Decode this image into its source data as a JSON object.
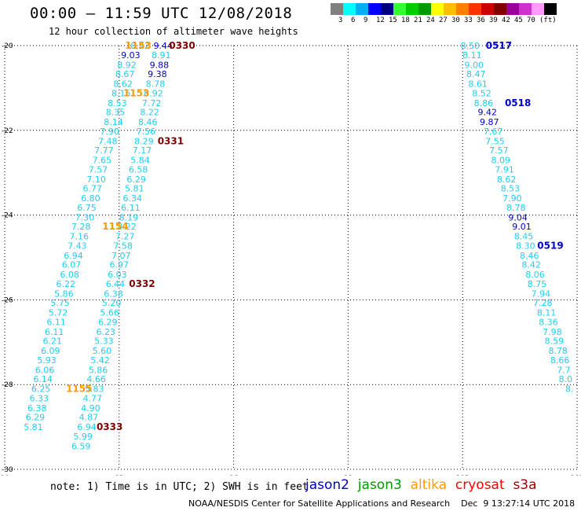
{
  "header": {
    "title": "00:00 – 11:59 UTC 12/08/2018",
    "subtitle": "12 hour collection of altimeter wave heights"
  },
  "legend": {
    "colors": [
      "#808080",
      "#00ffff",
      "#00b0f0",
      "#0000ff",
      "#00007f",
      "#33ff33",
      "#00cc00",
      "#009900",
      "#ffff00",
      "#ffbf00",
      "#ff8000",
      "#ff3300",
      "#cc0000",
      "#800000",
      "#990099",
      "#cc33cc",
      "#ff99ff",
      "#000000"
    ],
    "labels": [
      "3",
      "6",
      "9",
      "12",
      "15",
      "18",
      "21",
      "24",
      "27",
      "30",
      "33",
      "36",
      "39",
      "42",
      "45",
      "70",
      "(ft)"
    ]
  },
  "footer": {
    "note": "note: 1) Time is in UTC; 2) SWH is in feet",
    "satellites": [
      {
        "name": "jason2",
        "color": "#0000cc"
      },
      {
        "name": "jason3",
        "color": "#009900"
      },
      {
        "name": "altika",
        "color": "#ff9900"
      },
      {
        "name": "cryosat",
        "color": "#ff0000"
      },
      {
        "name": "s3a",
        "color": "#990000"
      }
    ],
    "credit": "NOAA/NESDIS Center for Satellite Applications and Research    Dec  9 13:27:14 UTC 2018"
  },
  "chart_data": {
    "type": "scatter",
    "xlim": [
      90,
      105
    ],
    "ylim": [
      -30,
      -20
    ],
    "x_ticks": [
      "90",
      "93",
      "96",
      "99",
      "102",
      "105"
    ],
    "y_ticks": [
      "-20",
      "-22",
      "-24",
      "-26",
      "-28",
      "-30"
    ],
    "grid": true,
    "series": [
      {
        "name": "track-93",
        "color": "#22ccee",
        "points": [
          {
            "x": 93.55,
            "y": -20.0,
            "v": "8.22"
          },
          {
            "x": 93.3,
            "y": -20.22,
            "v": "9.03",
            "c": "#0000cc"
          },
          {
            "x": 93.2,
            "y": -20.45,
            "v": "8.92"
          },
          {
            "x": 93.15,
            "y": -20.67,
            "v": "8.67"
          },
          {
            "x": 93.1,
            "y": -20.9,
            "v": "8.62"
          },
          {
            "x": 93.05,
            "y": -21.12,
            "v": "8.15"
          },
          {
            "x": 92.95,
            "y": -21.35,
            "v": "8.53"
          },
          {
            "x": 92.9,
            "y": -21.57,
            "v": "8.35"
          },
          {
            "x": 92.85,
            "y": -21.8,
            "v": "8.14"
          },
          {
            "x": 92.75,
            "y": -22.02,
            "v": "7.90"
          },
          {
            "x": 92.7,
            "y": -22.25,
            "v": "7.48"
          },
          {
            "x": 92.6,
            "y": -22.47,
            "v": "7.77"
          },
          {
            "x": 92.55,
            "y": -22.7,
            "v": "7.65"
          },
          {
            "x": 92.45,
            "y": -22.92,
            "v": "7.57"
          },
          {
            "x": 92.4,
            "y": -23.15,
            "v": "7.10"
          },
          {
            "x": 92.3,
            "y": -23.37,
            "v": "6.77"
          },
          {
            "x": 92.25,
            "y": -23.6,
            "v": "6.80"
          },
          {
            "x": 92.15,
            "y": -23.82,
            "v": "6.75"
          },
          {
            "x": 92.1,
            "y": -24.05,
            "v": "7.30"
          },
          {
            "x": 92.0,
            "y": -24.27,
            "v": "7.28"
          },
          {
            "x": 91.95,
            "y": -24.5,
            "v": "7.16"
          },
          {
            "x": 91.9,
            "y": -24.72,
            "v": "7.43"
          },
          {
            "x": 91.8,
            "y": -24.95,
            "v": "6.94"
          },
          {
            "x": 91.75,
            "y": -25.17,
            "v": "6.07"
          },
          {
            "x": 91.7,
            "y": -25.4,
            "v": "6.08"
          },
          {
            "x": 91.6,
            "y": -25.62,
            "v": "6.22"
          },
          {
            "x": 91.55,
            "y": -25.85,
            "v": "5.86"
          },
          {
            "x": 91.45,
            "y": -26.07,
            "v": "5.75"
          },
          {
            "x": 91.4,
            "y": -26.3,
            "v": "5.72"
          },
          {
            "x": 91.35,
            "y": -26.52,
            "v": "6.11"
          },
          {
            "x": 91.3,
            "y": -26.75,
            "v": "6.11"
          },
          {
            "x": 91.25,
            "y": -26.97,
            "v": "6.21"
          },
          {
            "x": 91.2,
            "y": -27.2,
            "v": "6.09"
          },
          {
            "x": 91.1,
            "y": -27.42,
            "v": "5.93"
          },
          {
            "x": 91.05,
            "y": -27.65,
            "v": "6.06"
          },
          {
            "x": 91.0,
            "y": -27.87,
            "v": "6.14"
          },
          {
            "x": 90.95,
            "y": -28.1,
            "v": "6.25"
          },
          {
            "x": 90.9,
            "y": -28.32,
            "v": "6.33"
          },
          {
            "x": 90.85,
            "y": -28.55,
            "v": "6.38"
          },
          {
            "x": 90.8,
            "y": -28.77,
            "v": "6.29"
          },
          {
            "x": 90.75,
            "y": -29.0,
            "v": "5.81"
          }
        ]
      },
      {
        "name": "track-94",
        "color": "#22ccee",
        "points": [
          {
            "x": 94.15,
            "y": -20.0,
            "v": "9.44",
            "c": "#0000cc"
          },
          {
            "x": 94.1,
            "y": -20.22,
            "v": "8.91"
          },
          {
            "x": 94.05,
            "y": -20.45,
            "v": "9.88",
            "c": "#0000cc"
          },
          {
            "x": 94.0,
            "y": -20.67,
            "v": "9.38",
            "c": "#0000cc"
          },
          {
            "x": 93.95,
            "y": -20.9,
            "v": "8.78"
          },
          {
            "x": 93.9,
            "y": -21.12,
            "v": "8.92"
          },
          {
            "x": 93.85,
            "y": -21.35,
            "v": "7.72"
          },
          {
            "x": 93.8,
            "y": -21.57,
            "v": "8.22"
          },
          {
            "x": 93.75,
            "y": -21.8,
            "v": "8.46"
          },
          {
            "x": 93.7,
            "y": -22.02,
            "v": "7.56"
          },
          {
            "x": 93.65,
            "y": -22.25,
            "v": "8.29"
          },
          {
            "x": 93.6,
            "y": -22.47,
            "v": "7.17"
          },
          {
            "x": 93.55,
            "y": -22.7,
            "v": "5.84"
          },
          {
            "x": 93.5,
            "y": -22.92,
            "v": "6.58"
          },
          {
            "x": 93.45,
            "y": -23.15,
            "v": "6.29"
          },
          {
            "x": 93.4,
            "y": -23.37,
            "v": "5.81"
          },
          {
            "x": 93.35,
            "y": -23.6,
            "v": "6.34"
          },
          {
            "x": 93.3,
            "y": -23.82,
            "v": "6.11"
          },
          {
            "x": 93.25,
            "y": -24.05,
            "v": "8.19"
          },
          {
            "x": 93.2,
            "y": -24.27,
            "v": "8.22"
          },
          {
            "x": 93.15,
            "y": -24.5,
            "v": "7.27"
          },
          {
            "x": 93.1,
            "y": -24.72,
            "v": "7.58"
          },
          {
            "x": 93.05,
            "y": -24.95,
            "v": "7.07"
          },
          {
            "x": 93.0,
            "y": -25.17,
            "v": "6.97"
          },
          {
            "x": 92.95,
            "y": -25.4,
            "v": "6.03"
          },
          {
            "x": 92.9,
            "y": -25.62,
            "v": "6.44"
          },
          {
            "x": 92.85,
            "y": -25.85,
            "v": "6.38"
          },
          {
            "x": 92.8,
            "y": -26.07,
            "v": "5.20"
          },
          {
            "x": 92.75,
            "y": -26.3,
            "v": "5.66"
          },
          {
            "x": 92.7,
            "y": -26.52,
            "v": "6.29"
          },
          {
            "x": 92.65,
            "y": -26.75,
            "v": "6.23"
          },
          {
            "x": 92.6,
            "y": -26.97,
            "v": "5.33"
          },
          {
            "x": 92.55,
            "y": -27.2,
            "v": "5.60"
          },
          {
            "x": 92.5,
            "y": -27.42,
            "v": "5.42"
          },
          {
            "x": 92.45,
            "y": -27.65,
            "v": "5.86"
          },
          {
            "x": 92.4,
            "y": -27.87,
            "v": "4.66"
          },
          {
            "x": 92.35,
            "y": -28.1,
            "v": "5.83"
          },
          {
            "x": 92.3,
            "y": -28.32,
            "v": "4.77"
          },
          {
            "x": 92.25,
            "y": -28.55,
            "v": "4.90"
          },
          {
            "x": 92.2,
            "y": -28.77,
            "v": "4.87"
          },
          {
            "x": 92.15,
            "y": -29.0,
            "v": "6.94"
          },
          {
            "x": 92.05,
            "y": -29.22,
            "v": "5.99"
          },
          {
            "x": 92.0,
            "y": -29.45,
            "v": "6.59"
          }
        ]
      },
      {
        "name": "track-102",
        "color": "#22ccee",
        "points": [
          {
            "x": 102.2,
            "y": -20.0,
            "v": "8.50"
          },
          {
            "x": 102.25,
            "y": -20.22,
            "v": "8.11"
          },
          {
            "x": 102.3,
            "y": -20.45,
            "v": "9.00"
          },
          {
            "x": 102.35,
            "y": -20.67,
            "v": "8.47"
          },
          {
            "x": 102.4,
            "y": -20.9,
            "v": "8.61"
          },
          {
            "x": 102.5,
            "y": -21.12,
            "v": "8.52"
          },
          {
            "x": 102.55,
            "y": -21.35,
            "v": "8.86"
          },
          {
            "x": 102.65,
            "y": -21.57,
            "v": "9.42",
            "c": "#0000cc"
          },
          {
            "x": 102.7,
            "y": -21.8,
            "v": "9.87",
            "c": "#0000cc"
          },
          {
            "x": 102.8,
            "y": -22.02,
            "v": "7.67"
          },
          {
            "x": 102.85,
            "y": -22.25,
            "v": "7.55"
          },
          {
            "x": 102.95,
            "y": -22.47,
            "v": "7.57"
          },
          {
            "x": 103.0,
            "y": -22.7,
            "v": "8.09"
          },
          {
            "x": 103.1,
            "y": -22.92,
            "v": "7.91"
          },
          {
            "x": 103.15,
            "y": -23.15,
            "v": "8.62"
          },
          {
            "x": 103.25,
            "y": -23.37,
            "v": "8.53"
          },
          {
            "x": 103.3,
            "y": -23.6,
            "v": "7.90"
          },
          {
            "x": 103.4,
            "y": -23.82,
            "v": "8.78"
          },
          {
            "x": 103.45,
            "y": -24.05,
            "v": "9.04",
            "c": "#0000cc"
          },
          {
            "x": 103.55,
            "y": -24.27,
            "v": "9.01",
            "c": "#0000cc"
          },
          {
            "x": 103.6,
            "y": -24.5,
            "v": "8.45"
          },
          {
            "x": 103.65,
            "y": -24.72,
            "v": "8.30"
          },
          {
            "x": 103.75,
            "y": -24.95,
            "v": "8.46"
          },
          {
            "x": 103.8,
            "y": -25.17,
            "v": "8.42"
          },
          {
            "x": 103.9,
            "y": -25.4,
            "v": "8.06"
          },
          {
            "x": 103.95,
            "y": -25.62,
            "v": "8.75"
          },
          {
            "x": 104.05,
            "y": -25.85,
            "v": "7.94"
          },
          {
            "x": 104.1,
            "y": -26.07,
            "v": "7.28"
          },
          {
            "x": 104.2,
            "y": -26.3,
            "v": "8.11"
          },
          {
            "x": 104.25,
            "y": -26.52,
            "v": "8.36"
          },
          {
            "x": 104.35,
            "y": -26.75,
            "v": "7.98"
          },
          {
            "x": 104.4,
            "y": -26.97,
            "v": "8.59"
          },
          {
            "x": 104.5,
            "y": -27.2,
            "v": "8.78"
          },
          {
            "x": 104.55,
            "y": -27.42,
            "v": "8.66"
          },
          {
            "x": 104.65,
            "y": -27.65,
            "v": "7.7"
          },
          {
            "x": 104.7,
            "y": -27.87,
            "v": "8.0"
          },
          {
            "x": 104.8,
            "y": -28.1,
            "v": "8."
          }
        ]
      }
    ],
    "overlay_labels": [
      {
        "x": 93.5,
        "y": -20.0,
        "v": "1153",
        "color": "#ff9900"
      },
      {
        "x": 94.65,
        "y": -20.0,
        "v": "0330",
        "color": "#800000"
      },
      {
        "x": 93.45,
        "y": -21.12,
        "v": "1153",
        "color": "#ff9900"
      },
      {
        "x": 94.35,
        "y": -22.25,
        "v": "0331",
        "color": "#800000"
      },
      {
        "x": 92.9,
        "y": -24.27,
        "v": "1154",
        "color": "#ff9900"
      },
      {
        "x": 93.6,
        "y": -25.62,
        "v": "0332",
        "color": "#800000"
      },
      {
        "x": 91.95,
        "y": -28.1,
        "v": "1155",
        "color": "#ff9900"
      },
      {
        "x": 92.75,
        "y": -29.0,
        "v": "0333",
        "color": "#800000"
      },
      {
        "x": 102.95,
        "y": -20.0,
        "v": "0517",
        "color": "#0000cc"
      },
      {
        "x": 103.45,
        "y": -21.35,
        "v": "0518",
        "color": "#0000cc"
      },
      {
        "x": 104.3,
        "y": -24.72,
        "v": "0519",
        "color": "#0000cc"
      }
    ]
  }
}
